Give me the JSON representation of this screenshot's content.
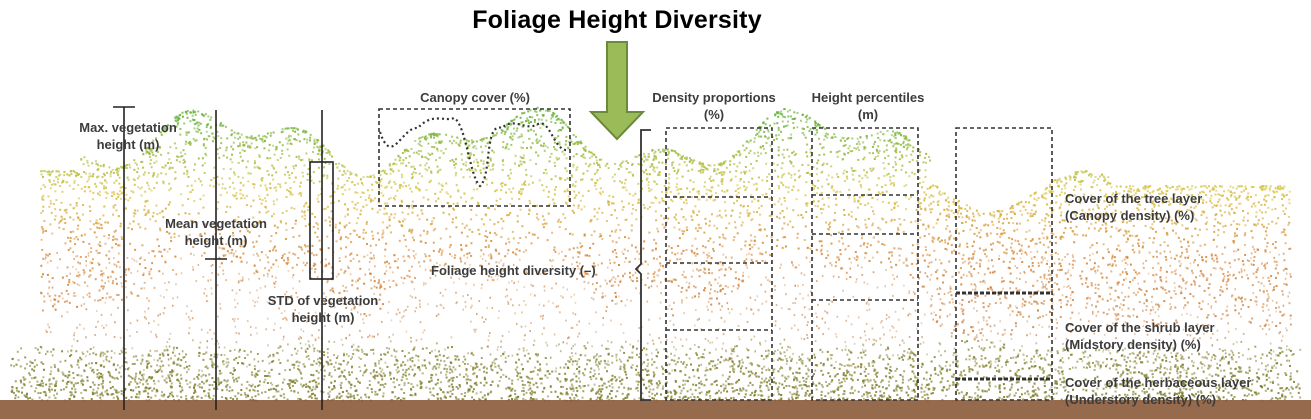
{
  "title": "Foliage Height Diversity",
  "labels": {
    "max_height": "Max. vegetation\nheight (m)",
    "mean_height": "Mean vegetation\nheight (m)",
    "std_height": "STD of vegetation\nheight (m)",
    "canopy_cover": "Canopy cover (%)",
    "density_proportions": "Density proportions\n(%)",
    "height_percentiles": "Height percentiles\n(m)",
    "foliage_height_diversity": "Foliage height diversity (–)",
    "tree_layer": "Cover of the tree layer\n(Canopy density) (%)",
    "shrub_layer": "Cover of the shrub layer\n(Midstory density) (%)",
    "herbaceous_layer": "Cover of the herbaceous layer\n(Understory density) (%)"
  },
  "colors": {
    "arrow_fill": "#9bbb59",
    "arrow_stroke": "#6b8a3a",
    "ground": "#8b5a3a",
    "canopy_top": "#6cb33e",
    "mid_yellow": "#d9c545",
    "mid_orange": "#d9893a",
    "understory": "#7d7d2c",
    "text": "#3c3c3c"
  },
  "icons": {
    "arrow": "down-arrow-icon"
  }
}
